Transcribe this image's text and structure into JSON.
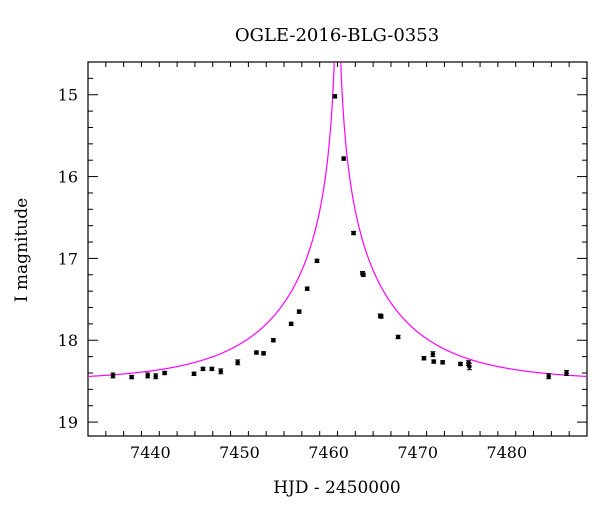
{
  "chart_data": {
    "type": "scatter",
    "title": "OGLE-2016-BLG-0353",
    "xlabel": "HJD - 2450000",
    "ylabel": "I magnitude",
    "xlim": [
      7433.0,
      7489.0
    ],
    "ylim": [
      19.17,
      14.6
    ],
    "y_inverted": true,
    "x_ticks": [
      7440,
      7450,
      7460,
      7470,
      7480
    ],
    "y_ticks": [
      15,
      16,
      17,
      18,
      19
    ],
    "grid": false,
    "colors": {
      "model": "#ff00ff",
      "points": "#000000",
      "axes": "#000000"
    },
    "series": [
      {
        "kind": "points",
        "x": [
          7435.8,
          7437.9,
          7439.7,
          7440.6,
          7441.6,
          7444.9,
          7445.9,
          7446.9,
          7447.9,
          7449.8,
          7451.9,
          7452.7,
          7453.8,
          7455.8,
          7456.7,
          7457.6,
          7458.7,
          7460.7,
          7461.7,
          7462.8,
          7463.8,
          7463.9,
          7465.8,
          7465.9,
          7467.8,
          7470.7,
          7471.7,
          7471.8,
          7472.8,
          7474.8,
          7475.7,
          7475.8,
          7484.7,
          7486.7
        ],
        "y": [
          18.43,
          18.45,
          18.43,
          18.44,
          18.4,
          18.41,
          18.35,
          18.35,
          18.38,
          18.27,
          18.15,
          18.16,
          18.0,
          17.8,
          17.65,
          17.37,
          17.03,
          15.02,
          15.78,
          16.69,
          17.18,
          17.2,
          17.7,
          17.71,
          17.96,
          18.22,
          18.17,
          18.26,
          18.27,
          18.29,
          18.28,
          18.32,
          18.44,
          18.4
        ],
        "yerr": [
          0.03,
          0.02,
          0.03,
          0.03,
          0.02,
          0.02,
          0.02,
          0.02,
          0.03,
          0.03,
          0.02,
          0.02,
          0.02,
          0.02,
          0.02,
          0.02,
          0.02,
          0.02,
          0.02,
          0.02,
          0.02,
          0.02,
          0.02,
          0.02,
          0.02,
          0.02,
          0.03,
          0.02,
          0.02,
          0.02,
          0.03,
          0.04,
          0.03,
          0.03
        ]
      },
      {
        "kind": "model",
        "t0": 7461.0,
        "tE": 13.5,
        "u0": 0.0063,
        "base_mag": 18.5
      }
    ]
  }
}
